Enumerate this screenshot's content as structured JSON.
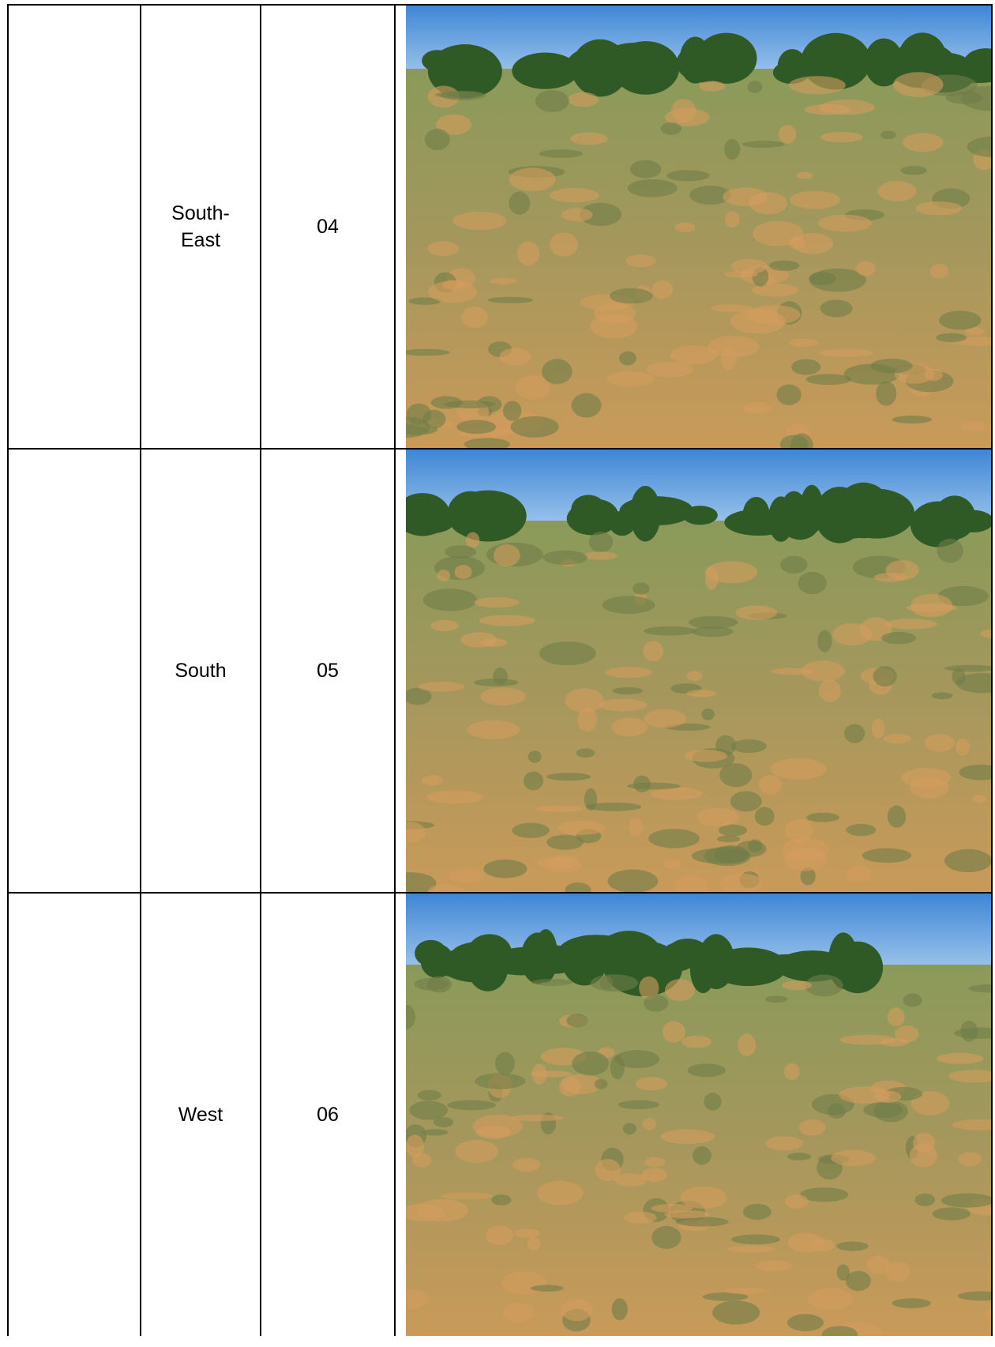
{
  "table": {
    "rows": [
      {
        "direction": "South-East",
        "number": "04"
      },
      {
        "direction": "South",
        "number": "05"
      },
      {
        "direction": "West",
        "number": "06"
      }
    ]
  }
}
